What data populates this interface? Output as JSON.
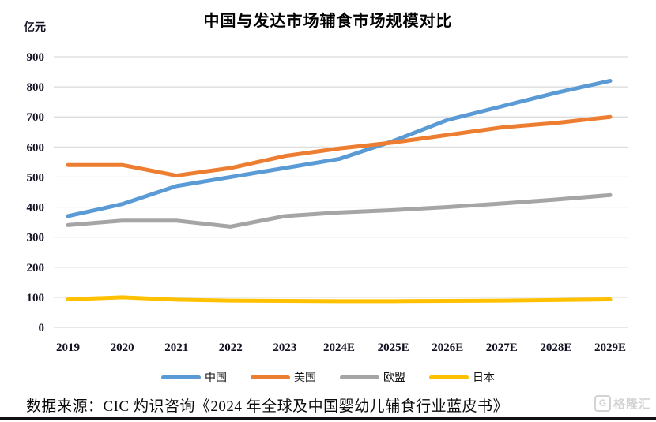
{
  "chart": {
    "title": "中国与发达市场辅食市场规模对比",
    "unit_label": "亿元",
    "source": "数据来源：CIC 灼识咨询《2024 年全球及中国婴幼儿辅食行业蓝皮书》",
    "watermark": "格隆汇",
    "watermark_icon": "G"
  },
  "chart_data": {
    "type": "line",
    "title": "中国与发达市场辅食市场规模对比",
    "ylabel": "亿元",
    "xlabel": "",
    "categories": [
      "2019",
      "2020",
      "2021",
      "2022",
      "2023",
      "2024E",
      "2025E",
      "2026E",
      "2027E",
      "2028E",
      "2029E"
    ],
    "series": [
      {
        "name": "中国",
        "color": "#5B9BD5",
        "values": [
          370,
          410,
          470,
          500,
          530,
          560,
          620,
          690,
          735,
          780,
          820
        ]
      },
      {
        "name": "美国",
        "color": "#ED7D31",
        "values": [
          540,
          540,
          505,
          530,
          570,
          595,
          615,
          640,
          665,
          680,
          700
        ]
      },
      {
        "name": "欧盟",
        "color": "#A5A5A5",
        "values": [
          340,
          355,
          355,
          335,
          370,
          382,
          390,
          400,
          412,
          425,
          440
        ]
      },
      {
        "name": "日本",
        "color": "#FFC000",
        "values": [
          93,
          100,
          92,
          89,
          88,
          87,
          87,
          88,
          89,
          91,
          93
        ]
      }
    ],
    "ylim": [
      0,
      900
    ],
    "ytick_step": 100,
    "grid": true,
    "gridline_color": "#D9D9D9",
    "legend_position": "bottom"
  }
}
